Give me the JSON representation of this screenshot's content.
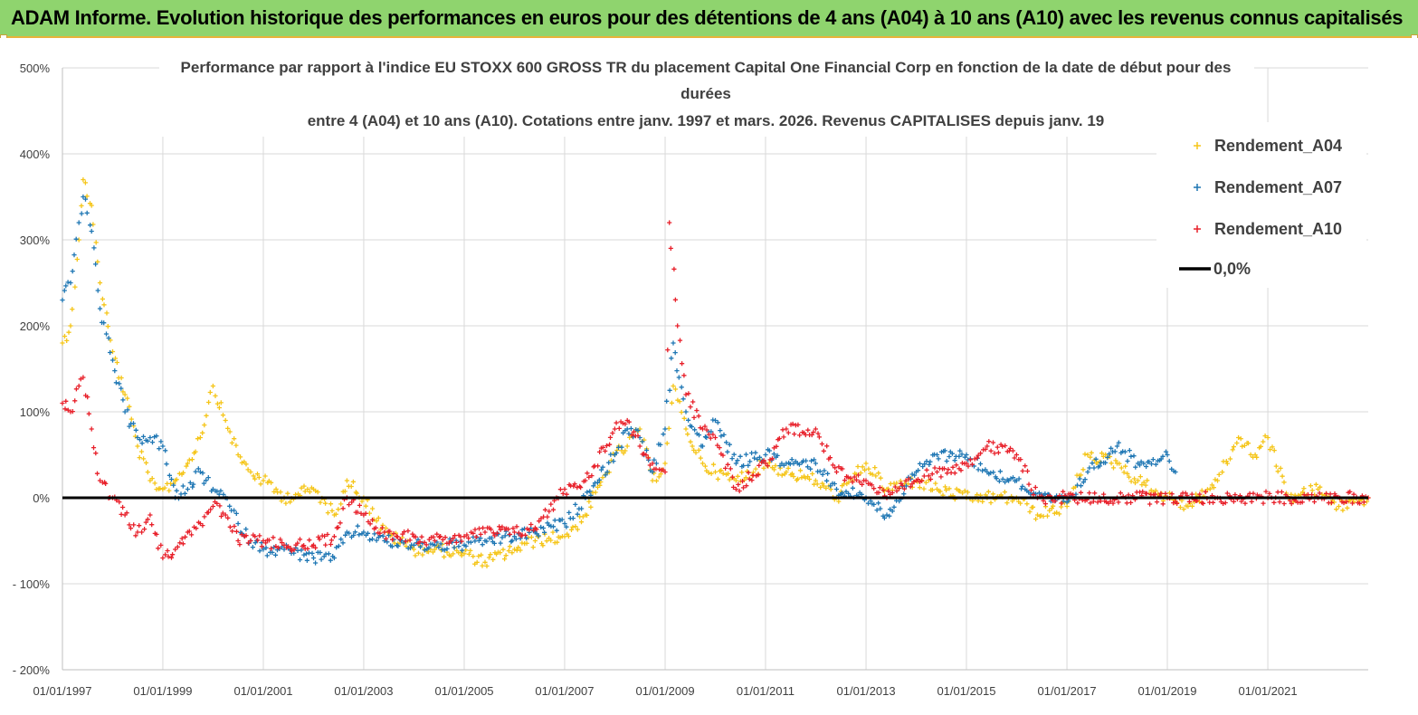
{
  "header": {
    "title": "ADAM Informe. Evolution historique des performances en euros pour des détentions de 4 ans (A04) à 10 ans (A10) avec les revenus connus capitalisés"
  },
  "colors": {
    "banner": "#8fd46e",
    "A04": "#f5c518",
    "A07": "#1f77b4",
    "A10": "#e8202a",
    "zero_line": "#000000"
  },
  "chart_data": {
    "type": "scatter",
    "title_lines": [
      "Performance par rapport à l'indice EU STOXX 600 GROSS TR  du placement Capital One Financial Corp en fonction de la date de début pour des",
      "durées",
      "entre 4 (A04) et 10 ans (A10).  Cotations entre janv. 1997 et mars. 2026. Revenus CAPITALISES depuis janv. 19"
    ],
    "xlabel": "",
    "ylabel": "",
    "xlim": [
      "1997-01-01",
      "2023-01-01"
    ],
    "ylim": [
      -200,
      500
    ],
    "y_ticks": [
      -200,
      -100,
      0,
      100,
      200,
      300,
      400,
      500
    ],
    "y_tick_labels": [
      "- 200%",
      "- 100%",
      "0%",
      "100%",
      "200%",
      "300%",
      "400%",
      "500%"
    ],
    "x_ticks": [
      "1997-01-01",
      "1999-01-01",
      "2001-01-01",
      "2003-01-01",
      "2005-01-01",
      "2007-01-01",
      "2009-01-01",
      "2011-01-01",
      "2013-01-01",
      "2015-01-01",
      "2017-01-01",
      "2019-01-01",
      "2021-01-01"
    ],
    "x_tick_labels": [
      "01/01/1997",
      "01/01/1999",
      "01/01/2001",
      "01/01/2003",
      "01/01/2005",
      "01/01/2007",
      "01/01/2009",
      "01/01/2011",
      "01/01/2013",
      "01/01/2015",
      "01/01/2017",
      "01/01/2019",
      "01/01/2021"
    ],
    "grid": true,
    "legend_position": "top-right",
    "series": [
      {
        "name": "Rendement_A04",
        "color": "#f5c518",
        "points": [
          [
            "1997-01-01",
            180
          ],
          [
            "1997-03-01",
            200
          ],
          [
            "1997-05-01",
            300
          ],
          [
            "1997-06-01",
            370
          ],
          [
            "1997-08-01",
            340
          ],
          [
            "1997-10-01",
            250
          ],
          [
            "1998-01-01",
            170
          ],
          [
            "1998-04-01",
            120
          ],
          [
            "1998-07-01",
            60
          ],
          [
            "1998-10-01",
            20
          ],
          [
            "1999-01-01",
            10
          ],
          [
            "1999-04-01",
            20
          ],
          [
            "1999-07-01",
            40
          ],
          [
            "1999-10-01",
            70
          ],
          [
            "2000-01-01",
            130
          ],
          [
            "2000-04-01",
            90
          ],
          [
            "2000-07-01",
            50
          ],
          [
            "2000-10-01",
            30
          ],
          [
            "2001-01-01",
            20
          ],
          [
            "2001-06-01",
            0
          ],
          [
            "2002-01-01",
            10
          ],
          [
            "2002-06-01",
            -20
          ],
          [
            "2002-09-01",
            20
          ],
          [
            "2003-01-01",
            0
          ],
          [
            "2003-06-01",
            -40
          ],
          [
            "2004-01-01",
            -60
          ],
          [
            "2004-06-01",
            -60
          ],
          [
            "2005-01-01",
            -65
          ],
          [
            "2005-06-01",
            -75
          ],
          [
            "2006-01-01",
            -60
          ],
          [
            "2006-06-01",
            -50
          ],
          [
            "2007-01-01",
            -45
          ],
          [
            "2007-06-01",
            -20
          ],
          [
            "2008-01-01",
            50
          ],
          [
            "2008-04-01",
            60
          ],
          [
            "2008-07-01",
            80
          ],
          [
            "2008-10-01",
            20
          ],
          [
            "2009-01-01",
            40
          ],
          [
            "2009-03-01",
            130
          ],
          [
            "2009-06-01",
            80
          ],
          [
            "2009-10-01",
            40
          ],
          [
            "2010-01-01",
            30
          ],
          [
            "2010-06-01",
            20
          ],
          [
            "2011-01-01",
            40
          ],
          [
            "2011-06-01",
            30
          ],
          [
            "2012-01-01",
            20
          ],
          [
            "2012-06-01",
            0
          ],
          [
            "2013-01-01",
            40
          ],
          [
            "2013-06-01",
            10
          ],
          [
            "2014-01-01",
            20
          ],
          [
            "2014-06-01",
            10
          ],
          [
            "2015-01-01",
            0
          ],
          [
            "2015-06-01",
            0
          ],
          [
            "2016-01-01",
            0
          ],
          [
            "2016-06-01",
            -20
          ],
          [
            "2017-01-01",
            -10
          ],
          [
            "2017-06-01",
            50
          ],
          [
            "2018-01-01",
            40
          ],
          [
            "2018-06-01",
            20
          ],
          [
            "2019-01-01",
            0
          ],
          [
            "2019-06-01",
            -10
          ],
          [
            "2020-01-01",
            20
          ],
          [
            "2020-06-01",
            70
          ],
          [
            "2020-10-01",
            50
          ],
          [
            "2021-01-01",
            70
          ],
          [
            "2021-06-01",
            0
          ],
          [
            "2022-01-01",
            10
          ],
          [
            "2022-06-01",
            -10
          ],
          [
            "2023-01-01",
            0
          ]
        ]
      },
      {
        "name": "Rendement_A07",
        "color": "#1f77b4",
        "points": [
          [
            "1997-01-01",
            230
          ],
          [
            "1997-03-01",
            250
          ],
          [
            "1997-05-01",
            320
          ],
          [
            "1997-06-01",
            350
          ],
          [
            "1997-08-01",
            310
          ],
          [
            "1997-10-01",
            220
          ],
          [
            "1998-01-01",
            160
          ],
          [
            "1998-04-01",
            100
          ],
          [
            "1998-07-01",
            70
          ],
          [
            "1998-10-01",
            70
          ],
          [
            "1999-01-01",
            60
          ],
          [
            "1999-04-01",
            0
          ],
          [
            "1999-07-01",
            10
          ],
          [
            "1999-10-01",
            30
          ],
          [
            "2000-01-01",
            10
          ],
          [
            "2000-04-01",
            0
          ],
          [
            "2000-07-01",
            -30
          ],
          [
            "2000-10-01",
            -50
          ],
          [
            "2001-01-01",
            -60
          ],
          [
            "2001-06-01",
            -60
          ],
          [
            "2002-01-01",
            -70
          ],
          [
            "2002-06-01",
            -70
          ],
          [
            "2002-09-01",
            -40
          ],
          [
            "2003-01-01",
            -40
          ],
          [
            "2003-06-01",
            -50
          ],
          [
            "2004-01-01",
            -55
          ],
          [
            "2004-06-01",
            -55
          ],
          [
            "2005-01-01",
            -55
          ],
          [
            "2005-06-01",
            -50
          ],
          [
            "2006-01-01",
            -45
          ],
          [
            "2006-06-01",
            -40
          ],
          [
            "2007-01-01",
            -30
          ],
          [
            "2007-06-01",
            0
          ],
          [
            "2008-01-01",
            50
          ],
          [
            "2008-04-01",
            80
          ],
          [
            "2008-07-01",
            70
          ],
          [
            "2008-10-01",
            30
          ],
          [
            "2009-01-01",
            80
          ],
          [
            "2009-03-01",
            180
          ],
          [
            "2009-06-01",
            100
          ],
          [
            "2009-10-01",
            60
          ],
          [
            "2010-01-01",
            90
          ],
          [
            "2010-06-01",
            40
          ],
          [
            "2011-01-01",
            50
          ],
          [
            "2011-06-01",
            40
          ],
          [
            "2012-01-01",
            40
          ],
          [
            "2012-06-01",
            10
          ],
          [
            "2013-01-01",
            0
          ],
          [
            "2013-06-01",
            -20
          ],
          [
            "2014-01-01",
            30
          ],
          [
            "2014-06-01",
            50
          ],
          [
            "2015-01-01",
            50
          ],
          [
            "2015-06-01",
            30
          ],
          [
            "2016-01-01",
            20
          ],
          [
            "2016-06-01",
            0
          ],
          [
            "2017-01-01",
            -5
          ],
          [
            "2017-06-01",
            30
          ],
          [
            "2018-01-01",
            60
          ],
          [
            "2018-06-01",
            40
          ],
          [
            "2019-01-01",
            50
          ],
          [
            "2019-03-01",
            30
          ]
        ]
      },
      {
        "name": "Rendement_A10",
        "color": "#e8202a",
        "points": [
          [
            "1997-01-01",
            110
          ],
          [
            "1997-03-01",
            100
          ],
          [
            "1997-05-01",
            130
          ],
          [
            "1997-06-01",
            140
          ],
          [
            "1997-08-01",
            80
          ],
          [
            "1997-10-01",
            20
          ],
          [
            "1998-01-01",
            0
          ],
          [
            "1998-04-01",
            -20
          ],
          [
            "1998-07-01",
            -40
          ],
          [
            "1998-10-01",
            -20
          ],
          [
            "1999-01-01",
            -70
          ],
          [
            "1999-04-01",
            -60
          ],
          [
            "1999-07-01",
            -40
          ],
          [
            "1999-10-01",
            -30
          ],
          [
            "2000-01-01",
            -10
          ],
          [
            "2000-04-01",
            -20
          ],
          [
            "2000-07-01",
            -50
          ],
          [
            "2000-10-01",
            -50
          ],
          [
            "2001-01-01",
            -50
          ],
          [
            "2001-06-01",
            -55
          ],
          [
            "2002-01-01",
            -55
          ],
          [
            "2002-06-01",
            -45
          ],
          [
            "2002-09-01",
            0
          ],
          [
            "2003-01-01",
            -20
          ],
          [
            "2003-06-01",
            -40
          ],
          [
            "2004-01-01",
            -45
          ],
          [
            "2004-06-01",
            -50
          ],
          [
            "2005-01-01",
            -45
          ],
          [
            "2005-06-01",
            -40
          ],
          [
            "2006-01-01",
            -40
          ],
          [
            "2006-06-01",
            -35
          ],
          [
            "2007-01-01",
            10
          ],
          [
            "2007-06-01",
            20
          ],
          [
            "2008-01-01",
            80
          ],
          [
            "2008-04-01",
            90
          ],
          [
            "2008-07-01",
            60
          ],
          [
            "2008-10-01",
            40
          ],
          [
            "2009-01-01",
            30
          ],
          [
            "2009-02-01",
            320
          ],
          [
            "2009-04-01",
            200
          ],
          [
            "2009-06-01",
            120
          ],
          [
            "2009-10-01",
            80
          ],
          [
            "2010-01-01",
            70
          ],
          [
            "2010-06-01",
            10
          ],
          [
            "2011-01-01",
            40
          ],
          [
            "2011-06-01",
            80
          ],
          [
            "2012-01-01",
            80
          ],
          [
            "2012-06-01",
            30
          ],
          [
            "2013-01-01",
            20
          ],
          [
            "2013-06-01",
            0
          ],
          [
            "2014-01-01",
            20
          ],
          [
            "2014-06-01",
            30
          ],
          [
            "2015-01-01",
            40
          ],
          [
            "2015-06-01",
            60
          ],
          [
            "2016-01-01",
            50
          ],
          [
            "2016-06-01",
            0
          ],
          [
            "2017-01-01",
            0
          ],
          [
            "2018-01-01",
            0
          ],
          [
            "2019-01-01",
            0
          ],
          [
            "2020-01-01",
            0
          ],
          [
            "2021-01-01",
            0
          ],
          [
            "2022-01-01",
            0
          ],
          [
            "2023-01-01",
            0
          ]
        ]
      }
    ],
    "reference_line": {
      "name": "0,0%",
      "value": 0
    },
    "legend": [
      {
        "label": "Rendement_A04",
        "marker": "plus",
        "color": "#f5c518"
      },
      {
        "label": "Rendement_A07",
        "marker": "plus",
        "color": "#1f77b4"
      },
      {
        "label": "Rendement_A10",
        "marker": "plus",
        "color": "#e8202a"
      },
      {
        "label": "0,0%",
        "marker": "line",
        "color": "#000000"
      }
    ]
  }
}
